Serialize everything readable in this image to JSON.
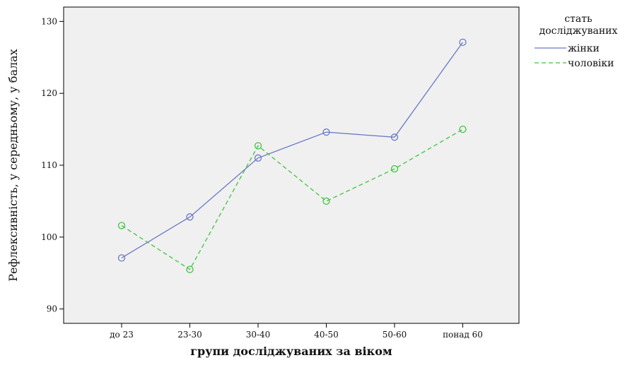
{
  "chart_data": {
    "type": "line",
    "categories": [
      "до 23",
      "23-30",
      "30-40",
      "40-50",
      "50-60",
      "понад 60"
    ],
    "series": [
      {
        "name": "жінки",
        "values": [
          97.1,
          102.8,
          111.0,
          114.6,
          113.9,
          127.1
        ],
        "color": "#6a79c6",
        "dash": "solid"
      },
      {
        "name": "чоловіки",
        "values": [
          101.6,
          95.5,
          112.7,
          105.0,
          109.5,
          115.0
        ],
        "color": "#3ec43e",
        "dash": "dashed"
      }
    ],
    "xlabel": "групи досліджуваних за віком",
    "ylabel": "Рефлексивність, у середньому, у балах",
    "ylim": [
      88,
      132
    ],
    "yticks": [
      90,
      100,
      110,
      120,
      130
    ],
    "legend": {
      "title_lines": [
        "стать",
        "досліджуваних"
      ],
      "placement": "right"
    },
    "plot_background": "#f0f0f0",
    "grid": false
  }
}
